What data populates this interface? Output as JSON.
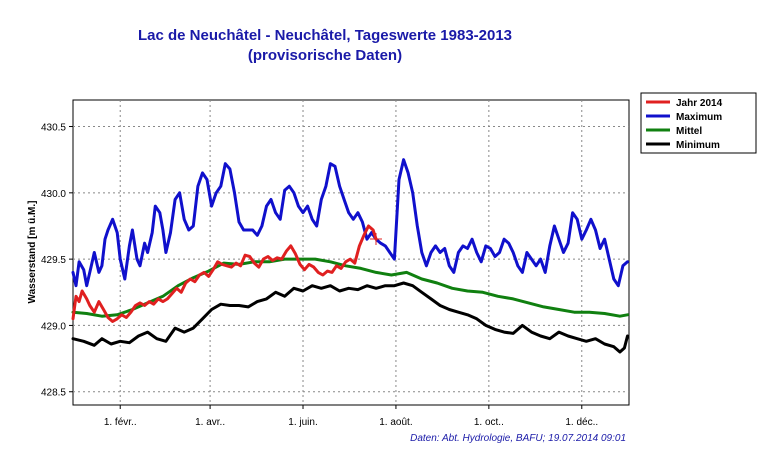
{
  "chart_data": {
    "type": "line",
    "title": "Lac de Neuchâtel - Neuchâtel, Tageswerte 1983-2013",
    "subtitle": "(provisorische Daten)",
    "ylabel": "Wasserstand [m ü.M.]",
    "xlabel": "",
    "credit": "Daten: Abt. Hydrologie, BAFU; 19.07.2014 09:01",
    "xlim": [
      1,
      366
    ],
    "ylim": [
      428.4,
      430.7
    ],
    "grid": true,
    "legend_position": "top-right-outside",
    "x_ticks": [
      {
        "day": 32,
        "label": "1. févr.."
      },
      {
        "day": 91,
        "label": "1. avr.."
      },
      {
        "day": 152,
        "label": "1. juin."
      },
      {
        "day": 213,
        "label": "1. août."
      },
      {
        "day": 274,
        "label": "1. oct.."
      },
      {
        "day": 335,
        "label": "1. déc.."
      }
    ],
    "y_ticks": [
      {
        "value": 428.5,
        "label": "428.5"
      },
      {
        "value": 429.0,
        "label": "429.0"
      },
      {
        "value": 429.5,
        "label": "429.5"
      },
      {
        "value": 430.0,
        "label": "430.0"
      },
      {
        "value": 430.5,
        "label": "430.5"
      }
    ],
    "series": [
      {
        "name": "Jahr 2014",
        "color": "#e02020",
        "x": [
          1,
          3,
          5,
          7,
          10,
          12,
          15,
          18,
          21,
          24,
          27,
          30,
          33,
          36,
          39,
          42,
          45,
          48,
          51,
          54,
          57,
          60,
          63,
          66,
          69,
          72,
          75,
          78,
          81,
          84,
          87,
          90,
          93,
          96,
          99,
          102,
          105,
          108,
          111,
          114,
          117,
          120,
          123,
          126,
          129,
          132,
          135,
          138,
          141,
          144,
          147,
          150,
          153,
          156,
          159,
          162,
          165,
          168,
          171,
          174,
          177,
          180,
          183,
          186,
          189,
          192,
          195,
          198,
          200
        ],
        "y": [
          429.05,
          429.22,
          429.18,
          429.26,
          429.2,
          429.15,
          429.1,
          429.18,
          429.12,
          429.06,
          429.03,
          429.05,
          429.08,
          429.06,
          429.1,
          429.15,
          429.17,
          429.15,
          429.18,
          429.16,
          429.2,
          429.18,
          429.2,
          429.24,
          429.28,
          429.25,
          429.32,
          429.35,
          429.33,
          429.38,
          429.4,
          429.37,
          429.42,
          429.48,
          429.46,
          429.45,
          429.44,
          429.47,
          429.45,
          429.53,
          429.52,
          429.47,
          429.44,
          429.5,
          429.52,
          429.49,
          429.51,
          429.5,
          429.56,
          429.6,
          429.54,
          429.46,
          429.42,
          429.46,
          429.44,
          429.4,
          429.38,
          429.41,
          429.4,
          429.45,
          429.43,
          429.48,
          429.5,
          429.47,
          429.6,
          429.68,
          429.75,
          429.72,
          429.65
        ]
      },
      {
        "name": "Maximum",
        "color": "#1010cc",
        "x": [
          1,
          3,
          5,
          8,
          10,
          13,
          15,
          18,
          20,
          22,
          24,
          27,
          30,
          32,
          35,
          38,
          40,
          43,
          45,
          48,
          50,
          53,
          55,
          58,
          60,
          62,
          65,
          68,
          71,
          74,
          77,
          80,
          83,
          86,
          89,
          92,
          95,
          98,
          101,
          104,
          107,
          110,
          113,
          116,
          119,
          122,
          125,
          128,
          131,
          134,
          137,
          140,
          143,
          146,
          149,
          152,
          155,
          158,
          161,
          164,
          167,
          170,
          173,
          176,
          179,
          182,
          185,
          188,
          191,
          194,
          197,
          200,
          203,
          206,
          209,
          212,
          215,
          218,
          221,
          224,
          227,
          230,
          233,
          236,
          239,
          242,
          245,
          248,
          251,
          254,
          257,
          260,
          263,
          266,
          269,
          272,
          275,
          278,
          281,
          284,
          287,
          290,
          293,
          296,
          299,
          302,
          305,
          308,
          311,
          314,
          317,
          320,
          323,
          326,
          329,
          332,
          335,
          338,
          341,
          344,
          347,
          350,
          353,
          356,
          359,
          362,
          365
        ],
        "y": [
          429.4,
          429.3,
          429.48,
          429.42,
          429.3,
          429.45,
          429.55,
          429.4,
          429.45,
          429.65,
          429.72,
          429.8,
          429.7,
          429.5,
          429.35,
          429.6,
          429.72,
          429.5,
          429.45,
          429.62,
          429.55,
          429.7,
          429.9,
          429.85,
          429.72,
          429.55,
          429.7,
          429.95,
          430.0,
          429.8,
          429.72,
          429.75,
          430.05,
          430.15,
          430.1,
          429.9,
          430.0,
          430.05,
          430.22,
          430.18,
          430.0,
          429.78,
          429.72,
          429.72,
          429.72,
          429.68,
          429.75,
          429.9,
          429.95,
          429.85,
          429.8,
          430.02,
          430.05,
          430.0,
          429.9,
          429.85,
          429.9,
          429.8,
          429.75,
          429.95,
          430.05,
          430.22,
          430.2,
          430.05,
          429.95,
          429.85,
          429.8,
          429.85,
          429.78,
          429.65,
          429.7,
          429.65,
          429.62,
          429.6,
          429.55,
          429.5,
          430.1,
          430.25,
          430.15,
          430.0,
          429.75,
          429.55,
          429.45,
          429.55,
          429.6,
          429.55,
          429.58,
          429.45,
          429.4,
          429.55,
          429.6,
          429.58,
          429.65,
          429.55,
          429.48,
          429.6,
          429.58,
          429.52,
          429.55,
          429.65,
          429.62,
          429.55,
          429.45,
          429.4,
          429.55,
          429.5,
          429.45,
          429.5,
          429.4,
          429.6,
          429.75,
          429.65,
          429.55,
          429.62,
          429.85,
          429.8,
          429.65,
          429.72,
          429.8,
          429.72,
          429.58,
          429.65,
          429.5,
          429.35,
          429.3,
          429.45,
          429.48
        ]
      },
      {
        "name": "Mittel",
        "color": "#108010",
        "x": [
          1,
          10,
          20,
          30,
          40,
          50,
          60,
          70,
          80,
          90,
          100,
          110,
          120,
          130,
          140,
          150,
          160,
          170,
          180,
          190,
          200,
          210,
          220,
          230,
          240,
          250,
          260,
          270,
          280,
          290,
          300,
          310,
          320,
          330,
          340,
          350,
          360,
          365
        ],
        "y": [
          429.1,
          429.09,
          429.07,
          429.08,
          429.12,
          429.17,
          429.22,
          429.3,
          429.36,
          429.41,
          429.47,
          429.46,
          429.48,
          429.48,
          429.5,
          429.5,
          429.5,
          429.48,
          429.45,
          429.43,
          429.4,
          429.38,
          429.4,
          429.35,
          429.32,
          429.28,
          429.26,
          429.25,
          429.22,
          429.2,
          429.17,
          429.14,
          429.12,
          429.1,
          429.1,
          429.09,
          429.07,
          429.08
        ]
      },
      {
        "name": "Minimum",
        "color": "#000000",
        "x": [
          1,
          8,
          15,
          20,
          26,
          32,
          38,
          44,
          50,
          56,
          62,
          68,
          74,
          80,
          86,
          92,
          98,
          104,
          110,
          116,
          122,
          128,
          134,
          140,
          146,
          152,
          158,
          164,
          170,
          176,
          182,
          188,
          194,
          200,
          206,
          212,
          218,
          224,
          230,
          236,
          242,
          248,
          254,
          260,
          266,
          272,
          278,
          284,
          290,
          296,
          302,
          308,
          314,
          320,
          326,
          332,
          338,
          344,
          350,
          356,
          360,
          363,
          365
        ],
        "y": [
          428.9,
          428.88,
          428.85,
          428.9,
          428.86,
          428.88,
          428.87,
          428.92,
          428.95,
          428.9,
          428.88,
          428.98,
          428.95,
          428.98,
          429.05,
          429.12,
          429.16,
          429.15,
          429.15,
          429.14,
          429.18,
          429.2,
          429.25,
          429.22,
          429.28,
          429.26,
          429.3,
          429.28,
          429.3,
          429.26,
          429.28,
          429.27,
          429.3,
          429.28,
          429.3,
          429.3,
          429.32,
          429.3,
          429.25,
          429.2,
          429.15,
          429.12,
          429.1,
          429.08,
          429.05,
          429.0,
          428.97,
          428.95,
          428.94,
          429.0,
          428.95,
          428.92,
          428.9,
          428.95,
          428.92,
          428.9,
          428.88,
          428.9,
          428.86,
          428.84,
          428.8,
          428.83,
          428.92
        ]
      }
    ]
  }
}
